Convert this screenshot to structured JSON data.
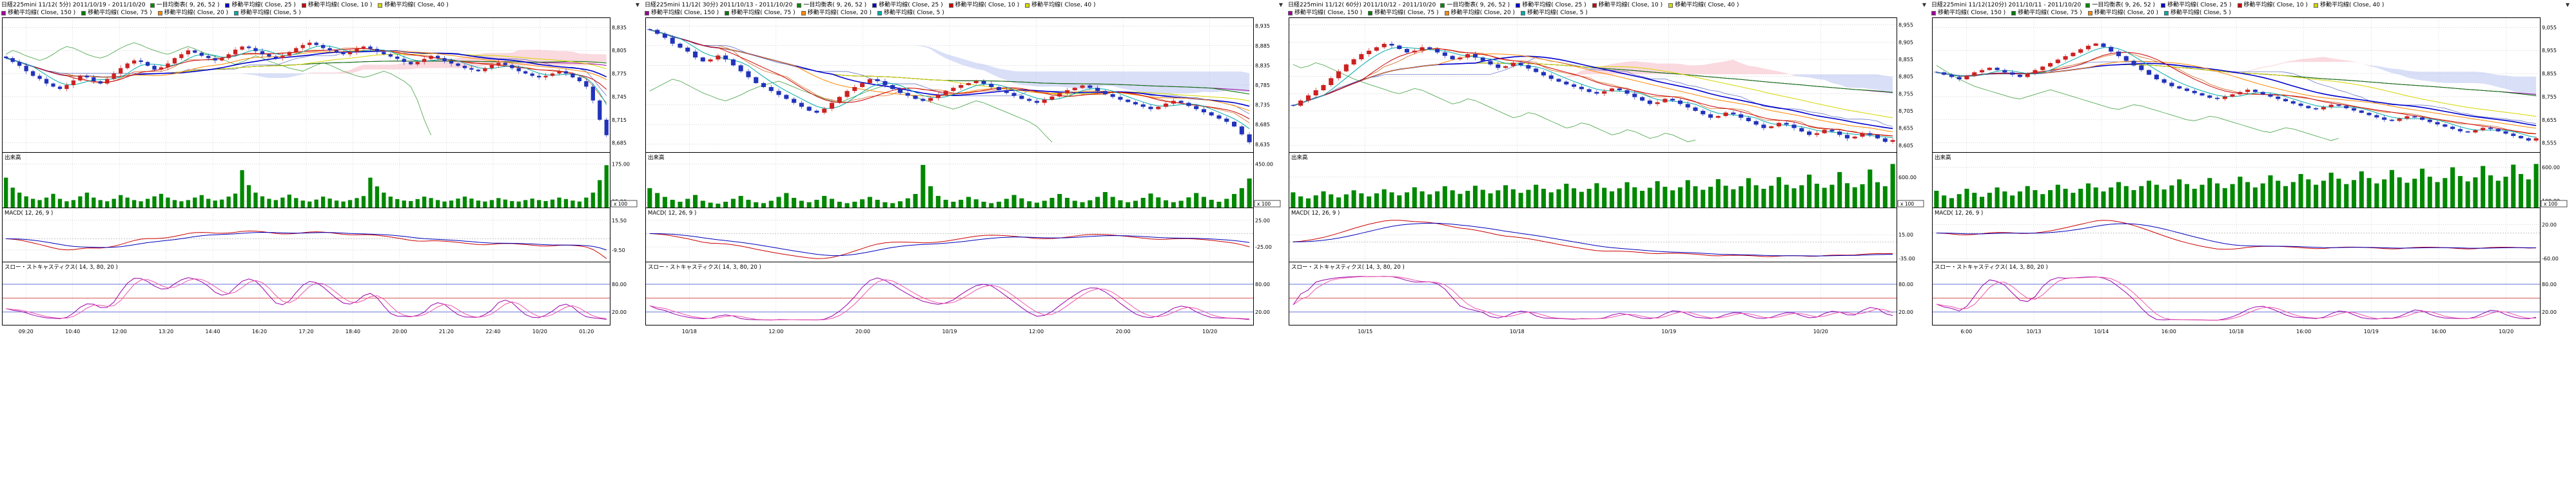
{
  "app": {
    "dropdown_icon": "▼"
  },
  "panes": {
    "volume_label": "出来高",
    "macd_label": "MACD( 12, 26, 9 )",
    "stoch_label": "スロー・ストキャスティクス( 14, 3, 80, 20 )",
    "volume_unit": "x 100"
  },
  "style": {
    "up_color": "#cc2222",
    "down_color": "#2233bb",
    "volume_color": "#008800",
    "macd_color": "#cc0000",
    "signal_color": "#0000bb",
    "stoch_k_color": "#9900aa",
    "stoch_d_color": "#ee55aa",
    "cloud_up": "#f5b3c0",
    "cloud_down": "#b3c0f0",
    "tenkan_color": "#cc5500",
    "kijun_color": "#5566bb",
    "chikou_color": "#55aa55",
    "ma_colors": {
      "5": "#00aaaa",
      "10": "#cc0000",
      "20": "#ff8800",
      "25": "#0000cc",
      "40": "#d6d600",
      "75": "#007700",
      "150": "#990099"
    }
  },
  "chart_data": [
    {
      "type": "candlestick",
      "title": "日経225mini 11/12( 5分) 2011/10/19 - 2011/10/20",
      "legend1": [
        {
          "label": "一目均衡表( 9, 26, 52 )",
          "color": "#008800"
        },
        {
          "label": "移動平均線( Close, 25 )",
          "color": "#0000cc"
        },
        {
          "label": "移動平均線( Close, 10 )",
          "color": "#cc0000"
        },
        {
          "label": "移動平均線( Close, 40 )",
          "color": "#d6d600"
        }
      ],
      "legend2": [
        {
          "label": "移動平均線( Close, 150 )",
          "color": "#990099"
        },
        {
          "label": "移動平均線( Close, 75 )",
          "color": "#007700"
        },
        {
          "label": "移動平均線( Close, 20 )",
          "color": "#ff8800"
        },
        {
          "label": "移動平均線( Close, 5 )",
          "color": "#00aaaa"
        }
      ],
      "price_ticks": [
        8835,
        8805,
        8775,
        8745,
        8715,
        8685
      ],
      "volume_ticks": [
        175,
        25
      ],
      "macd_ticks": [
        15.5,
        -9.5
      ],
      "stoch_ticks": [
        80,
        20
      ],
      "stoch_levels": [
        {
          "value": 80,
          "color": "#3344cc"
        },
        {
          "value": 50,
          "color": "#cc2222"
        },
        {
          "value": 20,
          "color": "#3344cc"
        }
      ],
      "x_labels": [
        "09:20",
        "10:40",
        "12:00",
        "13:20",
        "14:40",
        "16:20",
        "17:20",
        "18:40",
        "20:00",
        "21:20",
        "22:40",
        "10/20",
        "01:20"
      ],
      "mas": [
        150,
        75,
        40,
        25,
        20,
        10,
        5
      ],
      "wick": 3,
      "closes": [
        8795,
        8790,
        8785,
        8778,
        8772,
        8768,
        8762,
        8758,
        8755,
        8760,
        8766,
        8772,
        8770,
        8765,
        8762,
        8768,
        8775,
        8782,
        8788,
        8792,
        8790,
        8785,
        8780,
        8783,
        8788,
        8795,
        8800,
        8805,
        8802,
        8798,
        8795,
        8792,
        8795,
        8800,
        8806,
        8810,
        8808,
        8804,
        8800,
        8797,
        8795,
        8798,
        8803,
        8808,
        8812,
        8815,
        8812,
        8808,
        8805,
        8802,
        8800,
        8803,
        8807,
        8810,
        8807,
        8803,
        8800,
        8797,
        8794,
        8790,
        8787,
        8790,
        8794,
        8798,
        8795,
        8791,
        8788,
        8785,
        8782,
        8780,
        8778,
        8782,
        8786,
        8789,
        8786,
        8782,
        8778,
        8775,
        8772,
        8770,
        8772,
        8775,
        8778,
        8775,
        8770,
        8765,
        8758,
        8740,
        8715,
        8695
      ],
      "volumes": [
        120,
        80,
        60,
        45,
        35,
        30,
        40,
        55,
        35,
        25,
        30,
        45,
        60,
        40,
        30,
        25,
        35,
        50,
        40,
        30,
        25,
        35,
        45,
        55,
        40,
        30,
        25,
        30,
        40,
        50,
        35,
        28,
        32,
        44,
        56,
        150,
        90,
        60,
        45,
        35,
        30,
        40,
        52,
        38,
        28,
        24,
        32,
        44,
        36,
        28,
        24,
        30,
        38,
        46,
        120,
        85,
        60,
        44,
        34,
        28,
        26,
        34,
        44,
        38,
        30,
        24,
        28,
        36,
        44,
        36,
        28,
        24,
        30,
        38,
        32,
        26,
        24,
        30,
        36,
        30,
        26,
        32,
        40,
        34,
        28,
        24,
        40,
        60,
        110,
        170
      ]
    },
    {
      "type": "candlestick",
      "title": "日経225mini 11/12( 30分) 2011/10/13 - 2011/10/20",
      "legend1": [
        {
          "label": "一目均衡表( 9, 26, 52 )",
          "color": "#008800"
        },
        {
          "label": "移動平均線( Close, 25 )",
          "color": "#0000cc"
        },
        {
          "label": "移動平均線( Close, 10 )",
          "color": "#cc0000"
        },
        {
          "label": "移動平均線( Close, 40 )",
          "color": "#d6d600"
        }
      ],
      "legend2": [
        {
          "label": "移動平均線( Close, 150 )",
          "color": "#990099"
        },
        {
          "label": "移動平均線( Close, 75 )",
          "color": "#007700"
        },
        {
          "label": "移動平均線( Close, 20 )",
          "color": "#ff8800"
        },
        {
          "label": "移動平均線( Close, 5 )",
          "color": "#00aaaa"
        }
      ],
      "price_ticks": [
        8935,
        8885,
        8835,
        8785,
        8735,
        8685,
        8635
      ],
      "volume_ticks": [
        450,
        50
      ],
      "macd_ticks": [
        25,
        -25
      ],
      "stoch_ticks": [
        80,
        20
      ],
      "stoch_levels": [
        {
          "value": 80,
          "color": "#3344cc"
        },
        {
          "value": 50,
          "color": "#cc2222"
        },
        {
          "value": 20,
          "color": "#3344cc"
        }
      ],
      "x_labels": [
        "10/18",
        "12:00",
        "20:00",
        "10/19",
        "12:00",
        "20:00",
        "10/20"
      ],
      "mas": [
        150,
        75,
        40,
        25,
        20,
        10,
        5
      ],
      "wick": 5,
      "closes": [
        8925,
        8915,
        8905,
        8890,
        8880,
        8870,
        8855,
        8845,
        8850,
        8860,
        8850,
        8835,
        8820,
        8805,
        8790,
        8780,
        8770,
        8760,
        8750,
        8740,
        8730,
        8720,
        8715,
        8725,
        8740,
        8755,
        8770,
        8780,
        8790,
        8800,
        8795,
        8785,
        8775,
        8765,
        8758,
        8750,
        8745,
        8752,
        8760,
        8770,
        8778,
        8785,
        8790,
        8795,
        8788,
        8780,
        8772,
        8765,
        8758,
        8750,
        8745,
        8740,
        8748,
        8756,
        8764,
        8772,
        8778,
        8784,
        8778,
        8770,
        8762,
        8755,
        8748,
        8742,
        8736,
        8730,
        8724,
        8730,
        8738,
        8745,
        8740,
        8732,
        8724,
        8716,
        8708,
        8700,
        8692,
        8680,
        8660,
        8640
      ],
      "volumes": [
        200,
        150,
        110,
        80,
        60,
        90,
        130,
        70,
        50,
        40,
        60,
        90,
        120,
        80,
        55,
        45,
        70,
        110,
        150,
        100,
        70,
        55,
        80,
        120,
        90,
        60,
        45,
        60,
        85,
        110,
        80,
        55,
        45,
        65,
        95,
        140,
        440,
        220,
        120,
        80,
        60,
        80,
        110,
        85,
        60,
        45,
        60,
        90,
        130,
        95,
        65,
        50,
        70,
        100,
        140,
        100,
        70,
        55,
        75,
        110,
        160,
        110,
        75,
        55,
        70,
        100,
        145,
        105,
        75,
        55,
        70,
        105,
        150,
        110,
        80,
        60,
        90,
        140,
        200,
        300
      ]
    },
    {
      "type": "candlestick",
      "title": "日経225mini 11/12( 60分) 2011/10/12 - 2011/10/20",
      "legend1": [
        {
          "label": "一目均衡表( 9, 26, 52 )",
          "color": "#008800"
        },
        {
          "label": "移動平均線( Close, 25 )",
          "color": "#0000cc"
        },
        {
          "label": "移動平均線( Close, 10 )",
          "color": "#cc0000"
        },
        {
          "label": "移動平均線( Close, 40 )",
          "color": "#d6d600"
        }
      ],
      "legend2": [
        {
          "label": "移動平均線( Close, 150 )",
          "color": "#990099"
        },
        {
          "label": "移動平均線( Close, 75 )",
          "color": "#007700"
        },
        {
          "label": "移動平均線( Close, 20 )",
          "color": "#ff8800"
        },
        {
          "label": "移動平均線( Close, 5 )",
          "color": "#00aaaa"
        }
      ],
      "price_ticks": [
        8955,
        8905,
        8855,
        8805,
        8755,
        8705,
        8655,
        8605
      ],
      "volume_ticks": [
        600,
        100
      ],
      "macd_ticks": [
        15,
        -35
      ],
      "stoch_ticks": [
        80,
        20
      ],
      "stoch_levels": [
        {
          "value": 80,
          "color": "#3344cc"
        },
        {
          "value": 50,
          "color": "#cc2222"
        },
        {
          "value": 20,
          "color": "#3344cc"
        }
      ],
      "x_labels": [
        "10/15",
        "10/18",
        "10/19",
        "10/20"
      ],
      "mas": [
        150,
        75,
        40,
        25,
        20,
        10,
        5
      ],
      "wick": 6,
      "closes": [
        8720,
        8735,
        8750,
        8765,
        8780,
        8800,
        8820,
        8840,
        8855,
        8870,
        8880,
        8890,
        8900,
        8895,
        8885,
        8875,
        8880,
        8890,
        8885,
        8875,
        8865,
        8855,
        8860,
        8870,
        8860,
        8850,
        8840,
        8830,
        8835,
        8845,
        8838,
        8828,
        8818,
        8808,
        8798,
        8790,
        8782,
        8775,
        8768,
        8760,
        8755,
        8762,
        8770,
        8765,
        8755,
        8745,
        8735,
        8725,
        8730,
        8740,
        8735,
        8725,
        8715,
        8705,
        8695,
        8685,
        8690,
        8700,
        8695,
        8685,
        8675,
        8665,
        8655,
        8660,
        8670,
        8665,
        8655,
        8645,
        8635,
        8640,
        8650,
        8645,
        8635,
        8625,
        8630,
        8640,
        8635,
        8625,
        8615,
        8620
      ],
      "volumes": [
        300,
        220,
        180,
        240,
        320,
        260,
        200,
        260,
        340,
        280,
        220,
        280,
        360,
        300,
        240,
        300,
        400,
        320,
        260,
        320,
        420,
        340,
        270,
        330,
        430,
        350,
        280,
        340,
        440,
        360,
        290,
        350,
        450,
        370,
        300,
        360,
        470,
        380,
        310,
        370,
        480,
        390,
        320,
        380,
        500,
        400,
        330,
        390,
        520,
        410,
        340,
        400,
        540,
        420,
        350,
        410,
        560,
        430,
        360,
        420,
        580,
        440,
        370,
        430,
        600,
        450,
        380,
        440,
        650,
        470,
        390,
        450,
        700,
        480,
        400,
        460,
        750,
        500,
        420,
        860
      ]
    },
    {
      "type": "candlestick",
      "title": "日経225mini 11/12(120分) 2011/10/11 - 2011/10/20",
      "legend1": [
        {
          "label": "一目均衡表( 9, 26, 52 )",
          "color": "#008800"
        },
        {
          "label": "移動平均線( Close, 25 )",
          "color": "#0000cc"
        },
        {
          "label": "移動平均線( Close, 10 )",
          "color": "#cc0000"
        },
        {
          "label": "移動平均線( Close, 40 )",
          "color": "#d6d600"
        }
      ],
      "legend2": [
        {
          "label": "移動平均線( Close, 150 )",
          "color": "#990099"
        },
        {
          "label": "移動平均線( Close, 75 )",
          "color": "#007700"
        },
        {
          "label": "移動平均線( Close, 20 )",
          "color": "#ff8800"
        },
        {
          "label": "移動平均線( Close, 5 )",
          "color": "#00aaaa"
        }
      ],
      "price_ticks": [
        9055,
        8955,
        8855,
        8755,
        8655,
        8555
      ],
      "volume_ticks": [
        600,
        100
      ],
      "macd_ticks": [
        20,
        -60
      ],
      "stoch_ticks": [
        80,
        20
      ],
      "stoch_levels": [
        {
          "value": 80,
          "color": "#3344cc"
        },
        {
          "value": 50,
          "color": "#cc2222"
        },
        {
          "value": 20,
          "color": "#3344cc"
        }
      ],
      "x_labels": [
        "6:00",
        "10/13",
        "10/14",
        "16:00",
        "10/18",
        "16:00",
        "10/19",
        "16:00",
        "10/20"
      ],
      "mas": [
        150,
        75,
        40,
        25,
        20,
        10,
        5
      ],
      "wick": 7,
      "closes": [
        8860,
        8850,
        8840,
        8830,
        8845,
        8860,
        8870,
        8880,
        8870,
        8860,
        8850,
        8840,
        8855,
        8870,
        8885,
        8900,
        8915,
        8930,
        8945,
        8960,
        8975,
        8985,
        8970,
        8950,
        8930,
        8910,
        8890,
        8870,
        8850,
        8830,
        8815,
        8800,
        8790,
        8780,
        8770,
        8760,
        8750,
        8745,
        8755,
        8765,
        8775,
        8785,
        8775,
        8765,
        8755,
        8745,
        8735,
        8725,
        8715,
        8705,
        8700,
        8710,
        8720,
        8715,
        8705,
        8695,
        8685,
        8675,
        8665,
        8655,
        8650,
        8660,
        8670,
        8665,
        8655,
        8645,
        8635,
        8625,
        8615,
        8605,
        8600,
        8610,
        8620,
        8615,
        8605,
        8595,
        8585,
        8575,
        8565,
        8575
      ],
      "volumes": [
        250,
        180,
        140,
        200,
        280,
        220,
        160,
        220,
        300,
        240,
        180,
        240,
        320,
        260,
        200,
        260,
        340,
        280,
        220,
        280,
        360,
        300,
        240,
        300,
        380,
        320,
        260,
        320,
        400,
        340,
        270,
        330,
        420,
        350,
        280,
        340,
        440,
        360,
        290,
        350,
        460,
        380,
        300,
        360,
        480,
        400,
        320,
        380,
        500,
        420,
        340,
        400,
        520,
        430,
        350,
        410,
        540,
        440,
        360,
        420,
        560,
        450,
        370,
        430,
        580,
        460,
        380,
        440,
        600,
        470,
        390,
        450,
        620,
        480,
        400,
        460,
        640,
        500,
        420,
        650
      ]
    }
  ]
}
